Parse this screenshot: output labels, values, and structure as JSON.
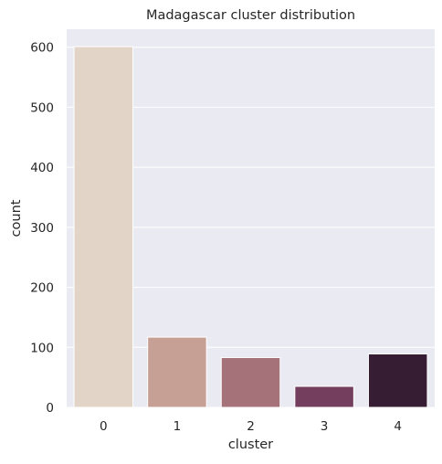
{
  "chart_data": {
    "type": "bar",
    "title": "Madagascar cluster distribution",
    "xlabel": "cluster",
    "ylabel": "count",
    "categories": [
      "0",
      "1",
      "2",
      "3",
      "4"
    ],
    "values": [
      601,
      117,
      83,
      35,
      89
    ],
    "ylim": [
      0,
      630
    ],
    "yticks": [
      0,
      100,
      200,
      300,
      400,
      500,
      600
    ],
    "grid": true,
    "legend": "none",
    "colors": [
      "#e2d5c7",
      "#c6a095",
      "#a6727a",
      "#743f5e",
      "#361d33"
    ],
    "background": "#eaeaf2",
    "grid_color": "#ffffff"
  }
}
